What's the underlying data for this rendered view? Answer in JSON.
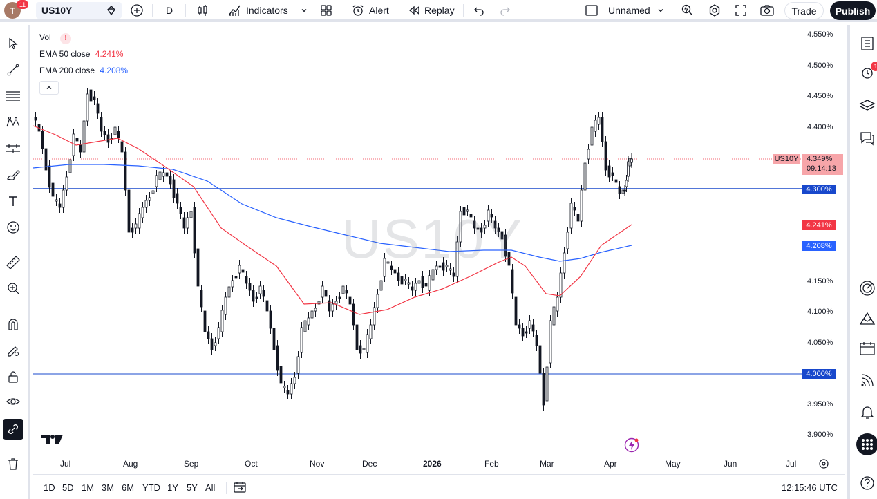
{
  "header": {
    "avatar_letter": "T",
    "notifications": "11",
    "symbol": "US10Y",
    "interval": "D",
    "indicators_label": "Indicators",
    "alert_label": "Alert",
    "replay_label": "Replay",
    "layout_name": "Unnamed",
    "trade_label": "Trade",
    "publish_label": "Publish"
  },
  "legend": {
    "vol_label": "Vol",
    "vol_warning": "!",
    "ema50_label": "EMA 50 close",
    "ema50_value": "4.241%",
    "ema200_label": "EMA 200 close",
    "ema200_value": "4.208%"
  },
  "watermark": "US10Y",
  "price_axis": {
    "ticks": [
      "4.550%",
      "4.500%",
      "4.450%",
      "4.400%",
      "4.150%",
      "4.100%",
      "4.050%",
      "3.950%",
      "3.900%"
    ],
    "symbol_tag": "US10Y",
    "last_price": "4.349%",
    "countdown": "09:14:13",
    "hline_upper": "4.300%",
    "ema50_tag": "4.241%",
    "ema200_tag": "4.208%",
    "hline_lower": "4.000%"
  },
  "time_axis": [
    "Jul",
    "Aug",
    "Sep",
    "Oct",
    "Nov",
    "Dec",
    "2026",
    "Feb",
    "Mar",
    "Apr",
    "May",
    "Jun",
    "Jul"
  ],
  "bottom": {
    "ranges": [
      "1D",
      "5D",
      "1M",
      "3M",
      "6M",
      "YTD",
      "1Y",
      "5Y",
      "All"
    ],
    "clock": "12:15:46 UTC"
  },
  "right_sidebar": {
    "alert_badge": "1"
  },
  "colors": {
    "ema50": "#f23645",
    "ema200": "#2962ff",
    "hline": "#1848cc",
    "up": "#089981",
    "down": "#f23645",
    "candle": "#131722"
  }
}
